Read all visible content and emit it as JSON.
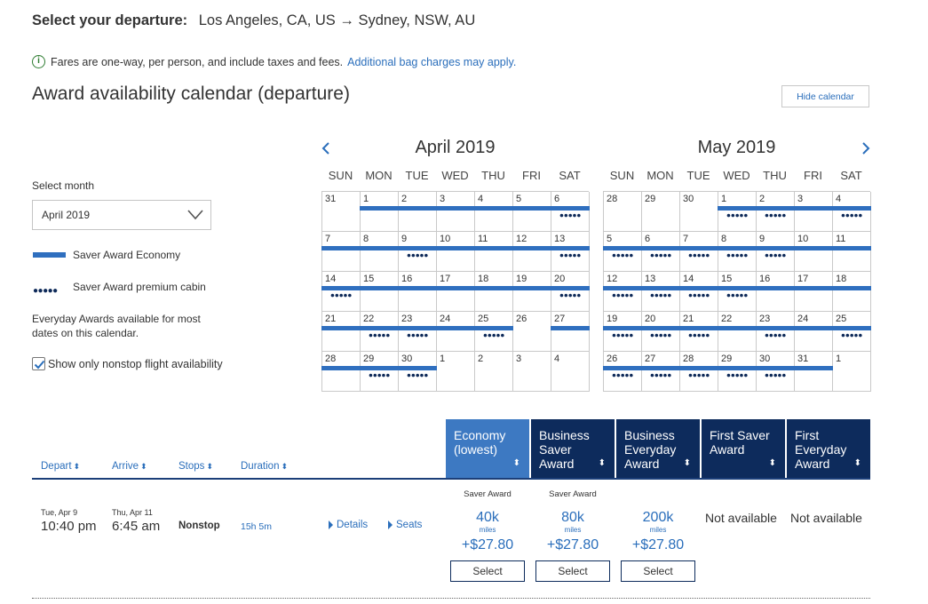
{
  "header": {
    "label": "Select your departure:",
    "route": "Los Angeles, CA, US → Sydney, NSW, AU"
  },
  "notice": {
    "text": "Fares are one-way, per person, and include taxes and fees.",
    "link": "Additional bag charges may apply."
  },
  "calendar_title": "Award availability calendar (departure)",
  "hide_calendar": "Hide calendar",
  "sidebar": {
    "select_month_label": "Select month",
    "selected_month": "April 2019",
    "legend_economy": "Saver Award Economy",
    "legend_premium": "Saver Award premium cabin",
    "everyday_note": "Everyday Awards available for most dates on this calendar.",
    "nonstop_label": "Show only nonstop flight availability",
    "nonstop_checked": true
  },
  "calendars": [
    {
      "title": "April 2019",
      "dow": [
        "SUN",
        "MON",
        "TUE",
        "WED",
        "THU",
        "FRI",
        "SAT"
      ],
      "days": [
        {
          "d": "31",
          "bar": false,
          "dots": false
        },
        {
          "d": "1",
          "bar": true,
          "dots": false
        },
        {
          "d": "2",
          "bar": true,
          "dots": false
        },
        {
          "d": "3",
          "bar": true,
          "dots": false
        },
        {
          "d": "4",
          "bar": true,
          "dots": false
        },
        {
          "d": "5",
          "bar": true,
          "dots": false
        },
        {
          "d": "6",
          "bar": true,
          "dots": true
        },
        {
          "d": "7",
          "bar": true,
          "dots": false
        },
        {
          "d": "8",
          "bar": true,
          "dots": false
        },
        {
          "d": "9",
          "bar": true,
          "dots": true
        },
        {
          "d": "10",
          "bar": true,
          "dots": false
        },
        {
          "d": "11",
          "bar": true,
          "dots": false
        },
        {
          "d": "12",
          "bar": true,
          "dots": false
        },
        {
          "d": "13",
          "bar": true,
          "dots": true
        },
        {
          "d": "14",
          "bar": true,
          "dots": true
        },
        {
          "d": "15",
          "bar": true,
          "dots": false
        },
        {
          "d": "16",
          "bar": true,
          "dots": false
        },
        {
          "d": "17",
          "bar": true,
          "dots": false
        },
        {
          "d": "18",
          "bar": true,
          "dots": false
        },
        {
          "d": "19",
          "bar": true,
          "dots": false
        },
        {
          "d": "20",
          "bar": true,
          "dots": true
        },
        {
          "d": "21",
          "bar": true,
          "dots": false
        },
        {
          "d": "22",
          "bar": true,
          "dots": true
        },
        {
          "d": "23",
          "bar": true,
          "dots": true
        },
        {
          "d": "24",
          "bar": true,
          "dots": false
        },
        {
          "d": "25",
          "bar": true,
          "dots": true
        },
        {
          "d": "26",
          "bar": false,
          "dots": false
        },
        {
          "d": "27",
          "bar": true,
          "dots": false
        },
        {
          "d": "28",
          "bar": true,
          "dots": false
        },
        {
          "d": "29",
          "bar": true,
          "dots": true
        },
        {
          "d": "30",
          "bar": true,
          "dots": true
        },
        {
          "d": "1",
          "bar": false,
          "dots": false
        },
        {
          "d": "2",
          "bar": false,
          "dots": false
        },
        {
          "d": "3",
          "bar": false,
          "dots": false
        },
        {
          "d": "4",
          "bar": false,
          "dots": false
        }
      ]
    },
    {
      "title": "May 2019",
      "dow": [
        "SUN",
        "MON",
        "TUE",
        "WED",
        "THU",
        "FRI",
        "SAT"
      ],
      "days": [
        {
          "d": "28",
          "bar": false,
          "dots": false
        },
        {
          "d": "29",
          "bar": false,
          "dots": false
        },
        {
          "d": "30",
          "bar": false,
          "dots": false
        },
        {
          "d": "1",
          "bar": true,
          "dots": true
        },
        {
          "d": "2",
          "bar": true,
          "dots": true
        },
        {
          "d": "3",
          "bar": true,
          "dots": false
        },
        {
          "d": "4",
          "bar": true,
          "dots": true
        },
        {
          "d": "5",
          "bar": true,
          "dots": true
        },
        {
          "d": "6",
          "bar": true,
          "dots": true
        },
        {
          "d": "7",
          "bar": true,
          "dots": true
        },
        {
          "d": "8",
          "bar": true,
          "dots": true
        },
        {
          "d": "9",
          "bar": true,
          "dots": true
        },
        {
          "d": "10",
          "bar": true,
          "dots": false
        },
        {
          "d": "11",
          "bar": true,
          "dots": false
        },
        {
          "d": "12",
          "bar": true,
          "dots": true
        },
        {
          "d": "13",
          "bar": true,
          "dots": true
        },
        {
          "d": "14",
          "bar": true,
          "dots": true
        },
        {
          "d": "15",
          "bar": true,
          "dots": true
        },
        {
          "d": "16",
          "bar": true,
          "dots": false
        },
        {
          "d": "17",
          "bar": true,
          "dots": false
        },
        {
          "d": "18",
          "bar": true,
          "dots": false
        },
        {
          "d": "19",
          "bar": true,
          "dots": true
        },
        {
          "d": "20",
          "bar": true,
          "dots": true
        },
        {
          "d": "21",
          "bar": true,
          "dots": true
        },
        {
          "d": "22",
          "bar": true,
          "dots": false
        },
        {
          "d": "23",
          "bar": true,
          "dots": true
        },
        {
          "d": "24",
          "bar": true,
          "dots": false
        },
        {
          "d": "25",
          "bar": true,
          "dots": true
        },
        {
          "d": "26",
          "bar": true,
          "dots": true
        },
        {
          "d": "27",
          "bar": true,
          "dots": true
        },
        {
          "d": "28",
          "bar": true,
          "dots": true
        },
        {
          "d": "29",
          "bar": true,
          "dots": true
        },
        {
          "d": "30",
          "bar": true,
          "dots": true
        },
        {
          "d": "31",
          "bar": true,
          "dots": false
        },
        {
          "d": "1",
          "bar": false,
          "dots": false
        }
      ]
    }
  ],
  "columns": {
    "depart": "Depart",
    "arrive": "Arrive",
    "stops": "Stops",
    "duration": "Duration",
    "fare_classes": [
      {
        "label": "Economy (lowest)",
        "selected": true
      },
      {
        "label": "Business Saver Award",
        "selected": false
      },
      {
        "label": "Business Everyday Award",
        "selected": false
      },
      {
        "label": "First Saver Award",
        "selected": false
      },
      {
        "label": "First Everyday Award",
        "selected": false
      }
    ]
  },
  "flight": {
    "depart_date": "Tue, Apr 9",
    "depart_time": "10:40 pm",
    "arrive_date": "Thu, Apr 11",
    "arrive_time": "6:45 am",
    "stops": "Nonstop",
    "duration": "15h 5m",
    "details": "Details",
    "seats": "Seats",
    "fares": [
      {
        "label": "Saver Award",
        "miles": "40k",
        "miles_unit": "miles",
        "tax": "+$27.80",
        "button": "Select"
      },
      {
        "label": "Saver Award",
        "miles": "80k",
        "miles_unit": "miles",
        "tax": "+$27.80",
        "button": "Select"
      },
      {
        "label": "",
        "miles": "200k",
        "miles_unit": "miles",
        "tax": "+$27.80",
        "button": "Select"
      },
      {
        "not_available": "Not available"
      },
      {
        "not_available": "Not available"
      }
    ]
  },
  "colors": {
    "saver_bar": "#2f6fbf",
    "selected_col": "#3d79c2",
    "dark_col": "#0d2b5c",
    "link": "#2a6ebb"
  }
}
